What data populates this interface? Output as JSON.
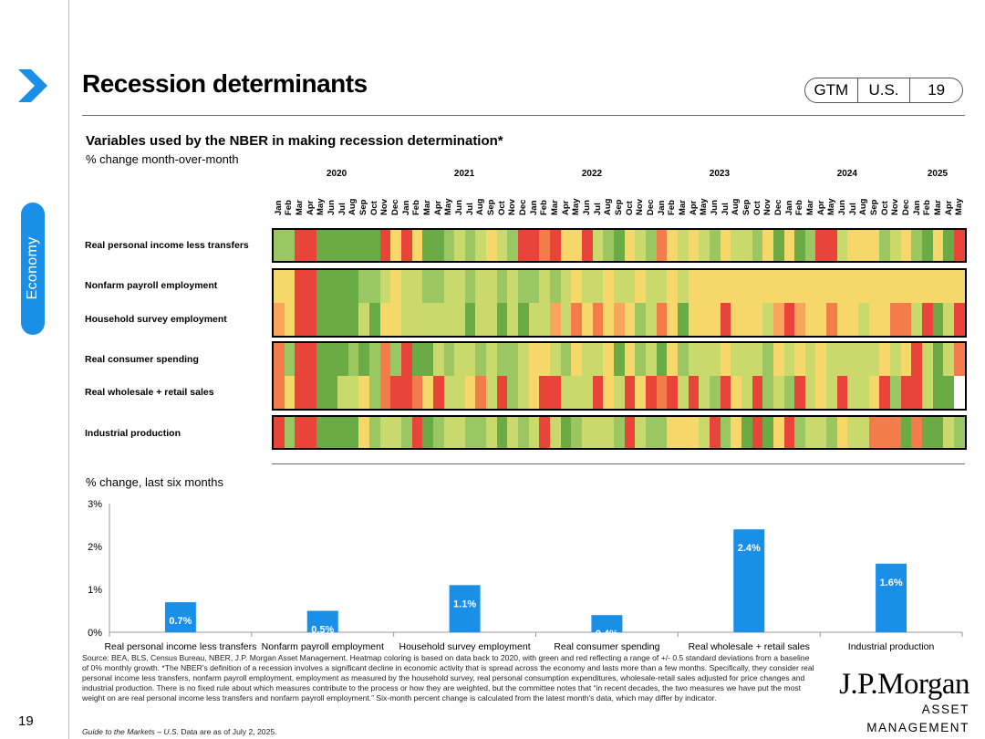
{
  "header": {
    "title": "Recession determinants",
    "pill": [
      "GTM",
      "U.S.",
      "19"
    ],
    "side_tab": "Economy",
    "page_number": "19"
  },
  "heatmap": {
    "title": "Variables used by the NBER in making recession determination*",
    "subtitle": "% change month-over-month",
    "years": [
      {
        "label": "2020",
        "start_index": 0
      },
      {
        "label": "2021",
        "start_index": 12
      },
      {
        "label": "2022",
        "start_index": 24
      },
      {
        "label": "2023",
        "start_index": 36
      },
      {
        "label": "2024",
        "start_index": 48
      },
      {
        "label": "2025",
        "start_index": 60
      }
    ],
    "months": [
      "Jan",
      "Feb",
      "Mar",
      "Apr",
      "May",
      "Jun",
      "Jul",
      "Aug",
      "Sep",
      "Oct",
      "Nov",
      "Dec",
      "Jan",
      "Feb",
      "Mar",
      "Apr",
      "May",
      "Jun",
      "Jul",
      "Aug",
      "Sep",
      "Oct",
      "Nov",
      "Dec",
      "Jan",
      "Feb",
      "Mar",
      "Apr",
      "May",
      "Jun",
      "Jul",
      "Aug",
      "Sep",
      "Oct",
      "Nov",
      "Dec",
      "Jan",
      "Feb",
      "Mar",
      "Apr",
      "May",
      "Jun",
      "Jul",
      "Aug",
      "Sep",
      "Oct",
      "Nov",
      "Dec",
      "Jan",
      "Feb",
      "Mar",
      "Apr",
      "May",
      "Jun",
      "Jul",
      "Aug",
      "Sep",
      "Oct",
      "Nov",
      "Dec",
      "Jan",
      "Feb",
      "Mar",
      "Apr",
      "May"
    ],
    "legend_colors": {
      "-1": "#e8443a",
      "-2": "#f47b4a",
      "-3": "#f9a55b",
      "0": "#f6d86a",
      "1": "#cad96b",
      "2": "#9bc763",
      "3": "#6aab45",
      "blank": "#ffffff"
    },
    "rows": [
      {
        "label": "Real personal income less transfers",
        "z": [
          2,
          2,
          -1,
          -1,
          3,
          3,
          3,
          3,
          3,
          3,
          -1,
          0,
          -1,
          0,
          3,
          3,
          2,
          1,
          2,
          1,
          0,
          1,
          2,
          -1,
          -1,
          -2,
          -1,
          0,
          0,
          -1,
          1,
          2,
          3,
          0,
          1,
          2,
          -2,
          0,
          1,
          0,
          1,
          2,
          0,
          1,
          1,
          2,
          0,
          3,
          0,
          3,
          2,
          -1,
          -1,
          1,
          0,
          0,
          0,
          2,
          1,
          0,
          2,
          3,
          0,
          3,
          -1
        ]
      },
      {
        "label": "Nonfarm payroll employment",
        "z": [
          0,
          0,
          -1,
          -1,
          3,
          3,
          3,
          3,
          2,
          2,
          1,
          0,
          1,
          1,
          2,
          2,
          1,
          1,
          2,
          1,
          1,
          2,
          1,
          2,
          2,
          1,
          2,
          1,
          0,
          1,
          1,
          0,
          1,
          1,
          0,
          1,
          1,
          0,
          1,
          0,
          0,
          0,
          0,
          0,
          0,
          0,
          0,
          0,
          0,
          0,
          0,
          0,
          0,
          0,
          0,
          0,
          0,
          0,
          0,
          0,
          0,
          0,
          0,
          0,
          0
        ]
      },
      {
        "label": "Household survey employment",
        "z": [
          -3,
          0,
          -1,
          -1,
          3,
          3,
          3,
          3,
          1,
          3,
          0,
          0,
          1,
          1,
          1,
          1,
          1,
          1,
          3,
          1,
          1,
          3,
          1,
          3,
          1,
          1,
          -3,
          1,
          -2,
          0,
          -2,
          0,
          -3,
          0,
          2,
          1,
          -2,
          0,
          3,
          0,
          0,
          0,
          -1,
          0,
          0,
          0,
          1,
          -3,
          -1,
          -3,
          0,
          0,
          -2,
          0,
          0,
          1,
          0,
          0,
          -2,
          -2,
          1,
          -1,
          3,
          1,
          -1
        ]
      },
      {
        "label": "Real consumer spending",
        "z": [
          -2,
          2,
          -1,
          -1,
          3,
          3,
          3,
          2,
          3,
          2,
          -2,
          2,
          -1,
          3,
          3,
          1,
          2,
          1,
          1,
          2,
          1,
          2,
          2,
          1,
          0,
          0,
          1,
          2,
          0,
          1,
          1,
          0,
          3,
          0,
          2,
          1,
          3,
          0,
          2,
          1,
          1,
          1,
          0,
          1,
          1,
          1,
          2,
          0,
          1,
          0,
          1,
          0,
          1,
          1,
          1,
          1,
          1,
          0,
          1,
          0,
          -1,
          1,
          3,
          1,
          -2
        ]
      },
      {
        "label": "Real wholesale + retail sales",
        "z": [
          -2,
          0,
          -1,
          -1,
          3,
          3,
          1,
          1,
          0,
          2,
          -2,
          -1,
          -1,
          -2,
          0,
          -1,
          1,
          1,
          0,
          -2,
          1,
          -1,
          2,
          1,
          0,
          -1,
          -1,
          1,
          1,
          1,
          -1,
          0,
          1,
          -1,
          0,
          -1,
          -2,
          -1,
          1,
          -1,
          1,
          2,
          -1,
          0,
          1,
          -1,
          2,
          1,
          2,
          -1,
          1,
          0,
          1,
          -1,
          1,
          1,
          0,
          -1,
          2,
          -1,
          -1,
          1,
          3,
          3,
          "blank"
        ]
      },
      {
        "label": "Industrial production",
        "z": [
          -1,
          2,
          -1,
          -1,
          3,
          3,
          3,
          3,
          0,
          2,
          1,
          1,
          2,
          -1,
          3,
          2,
          1,
          1,
          2,
          2,
          1,
          3,
          1,
          2,
          1,
          -1,
          1,
          3,
          2,
          1,
          1,
          1,
          2,
          -1,
          1,
          2,
          2,
          0,
          0,
          0,
          1,
          -1,
          2,
          0,
          3,
          -1,
          3,
          0,
          -1,
          2,
          1,
          1,
          2,
          0,
          1,
          1,
          -2,
          -2,
          -2,
          3,
          -2,
          3,
          3,
          1,
          2
        ]
      }
    ]
  },
  "bar_section": {
    "subtitle": "% change, last six months"
  },
  "chart_data": {
    "type": "bar",
    "title": "% change, last six months",
    "categories": [
      "Real personal income less transfers",
      "Nonfarm payroll employment",
      "Household survey employment",
      "Real consumer spending",
      "Real wholesale + retail sales",
      "Industrial production"
    ],
    "values": [
      0.7,
      0.5,
      1.1,
      0.4,
      2.4,
      1.6
    ],
    "data_labels": [
      "0.7%",
      "0.5%",
      "1.1%",
      "0.4%",
      "2.4%",
      "1.6%"
    ],
    "ytick_labels": [
      "0%",
      "1%",
      "2%",
      "3%"
    ],
    "yticks": [
      0,
      1,
      2,
      3
    ],
    "ylim": [
      0,
      3
    ],
    "bar_color": "#1a8fe8",
    "xlabel": "",
    "ylabel": ""
  },
  "footer": {
    "source": "Source: BEA, BLS, Census Bureau, NBER, J.P. Morgan Asset Management. Heatmap coloring is based on data back to 2020, with green and red reflecting a range of +/- 0.5 standard deviations from a baseline of 0% monthly growth. *The NBER's definition of a recession involves a significant decline in economic activity that is spread across the economy and lasts more than a few months. Specifically, they consider real personal income less transfers, nonfarm payroll employment, employment as measured by the household survey, real personal consumption expenditures, wholesale-retail sales adjusted for price changes and industrial production. There is no fixed rule about which measures contribute to the process or how they are weighted, but the committee notes that “in recent decades, the two measures we have put the most weight on are real personal income less transfers and nonfarm payroll employment.” Six-month percent change is calculated from the latest month's data, which may differ by indicator.",
    "guide": "Guide to the Markets – U.S.",
    "date_note": " Data are as of July 2, 2025."
  },
  "logo": {
    "main": "J.P.Morgan",
    "sub": "ASSET MANAGEMENT"
  }
}
